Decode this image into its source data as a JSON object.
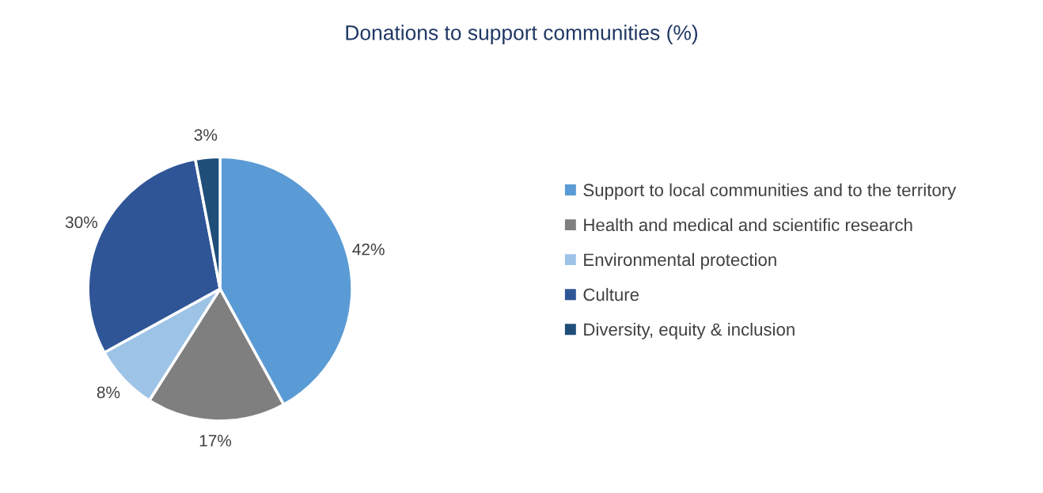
{
  "chart_data": {
    "type": "pie",
    "title": "Donations to support communities (%)",
    "categories": [
      "Support to local communities and to the territory",
      "Health and medical and scientific research",
      "Environmental protection",
      "Culture",
      "Diversity, equity & inclusion"
    ],
    "values": [
      42,
      17,
      8,
      30,
      3
    ],
    "value_labels": [
      "42%",
      "17%",
      "8%",
      "30%",
      "3%"
    ],
    "colors": [
      "#5b9bd5",
      "#7f7f7f",
      "#9dc3e6",
      "#2f5597",
      "#1f4e79"
    ],
    "legend": "right"
  }
}
